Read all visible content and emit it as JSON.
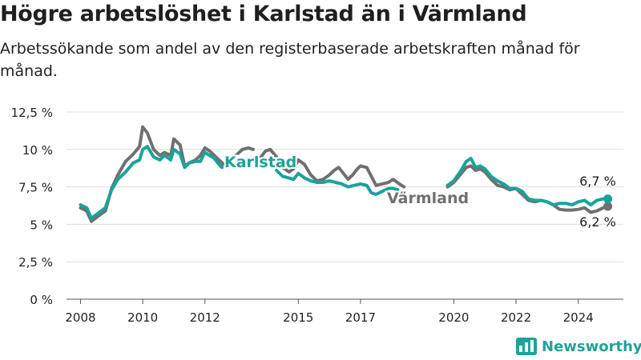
{
  "header": {
    "title": "Högre arbetslöshet i Karlstad än i Värmland",
    "subtitle": "Arbetssökande som andel av den registerbaserade arbetskraften månad för månad."
  },
  "brand": {
    "name": "Newsworthy",
    "icon": "bar-chart-logo-icon",
    "color": "#20a29a"
  },
  "chart_data": {
    "type": "line",
    "title": "Högre arbetslöshet i Karlstad än i Värmland",
    "subtitle": "Arbetssökande som andel av den registerbaserade arbetskraften månad för månad.",
    "xlabel": "",
    "ylabel": "",
    "x_range": [
      2008,
      2025
    ],
    "ylim": [
      0,
      12.5
    ],
    "x_ticks": [
      {
        "value": 2008,
        "label": "2008"
      },
      {
        "value": 2010,
        "label": "2010"
      },
      {
        "value": 2012,
        "label": "2012"
      },
      {
        "value": 2015,
        "label": "2015"
      },
      {
        "value": 2017,
        "label": "2017"
      },
      {
        "value": 2020,
        "label": "2020"
      },
      {
        "value": 2022,
        "label": "2022"
      },
      {
        "value": 2024,
        "label": "2024"
      }
    ],
    "y_ticks": [
      {
        "value": 0,
        "label": "0 %"
      },
      {
        "value": 2.5,
        "label": "2,5 %"
      },
      {
        "value": 5,
        "label": "5 %"
      },
      {
        "value": 7.5,
        "label": "7,5 %"
      },
      {
        "value": 10,
        "label": "10 %"
      },
      {
        "value": 12.5,
        "label": "12,5 %"
      }
    ],
    "grid": true,
    "series": [
      {
        "name": "Värmland",
        "color": "#707070",
        "end_label": "6,2 %",
        "segments": [
          [
            [
              2008.0,
              6.1
            ],
            [
              2008.2,
              5.9
            ],
            [
              2008.35,
              5.2
            ],
            [
              2008.6,
              5.6
            ],
            [
              2008.8,
              5.9
            ],
            [
              2009.0,
              7.4
            ],
            [
              2009.2,
              8.3
            ],
            [
              2009.45,
              9.2
            ],
            [
              2009.7,
              9.7
            ],
            [
              2009.9,
              10.2
            ],
            [
              2010.0,
              11.5
            ],
            [
              2010.15,
              11.1
            ],
            [
              2010.35,
              10.0
            ],
            [
              2010.55,
              9.6
            ],
            [
              2010.7,
              9.8
            ],
            [
              2010.9,
              9.6
            ],
            [
              2011.0,
              10.7
            ],
            [
              2011.2,
              10.3
            ],
            [
              2011.35,
              8.9
            ],
            [
              2011.5,
              9.1
            ],
            [
              2011.7,
              9.3
            ],
            [
              2011.85,
              9.6
            ],
            [
              2012.0,
              10.1
            ],
            [
              2012.15,
              9.9
            ],
            [
              2012.3,
              9.6
            ],
            [
              2012.45,
              9.3
            ],
            [
              2012.6,
              9.0
            ]
          ],
          [
            [
              2012.8,
              9.1
            ],
            [
              2013.0,
              9.6
            ],
            [
              2013.2,
              10.0
            ],
            [
              2013.4,
              10.1
            ],
            [
              2013.55,
              10.0
            ]
          ],
          [
            [
              2013.8,
              9.5
            ],
            [
              2013.95,
              9.9
            ],
            [
              2014.1,
              10.0
            ],
            [
              2014.3,
              9.5
            ],
            [
              2014.5,
              8.8
            ],
            [
              2014.7,
              8.5
            ],
            [
              2014.85,
              8.7
            ],
            [
              2015.0,
              9.3
            ],
            [
              2015.2,
              9.0
            ],
            [
              2015.4,
              8.3
            ],
            [
              2015.6,
              7.9
            ],
            [
              2015.8,
              8.0
            ],
            [
              2016.0,
              8.3
            ],
            [
              2016.15,
              8.6
            ],
            [
              2016.3,
              8.8
            ],
            [
              2016.45,
              8.4
            ],
            [
              2016.6,
              8.0
            ],
            [
              2016.75,
              8.3
            ],
            [
              2016.9,
              8.7
            ],
            [
              2017.0,
              8.9
            ],
            [
              2017.2,
              8.8
            ],
            [
              2017.35,
              8.2
            ],
            [
              2017.5,
              7.6
            ],
            [
              2017.7,
              7.7
            ],
            [
              2017.9,
              7.8
            ],
            [
              2018.05,
              8.0
            ],
            [
              2018.25,
              7.7
            ],
            [
              2018.4,
              7.5
            ]
          ],
          [
            [
              2019.8,
              7.5
            ],
            [
              2020.0,
              7.8
            ],
            [
              2020.2,
              8.3
            ],
            [
              2020.4,
              8.8
            ],
            [
              2020.55,
              8.9
            ],
            [
              2020.7,
              8.6
            ],
            [
              2020.85,
              8.7
            ],
            [
              2021.0,
              8.5
            ],
            [
              2021.2,
              8.0
            ],
            [
              2021.4,
              7.6
            ],
            [
              2021.6,
              7.5
            ],
            [
              2021.8,
              7.3
            ],
            [
              2022.0,
              7.4
            ],
            [
              2022.2,
              7.0
            ],
            [
              2022.4,
              6.6
            ],
            [
              2022.6,
              6.5
            ],
            [
              2022.8,
              6.6
            ],
            [
              2023.0,
              6.5
            ],
            [
              2023.2,
              6.3
            ],
            [
              2023.4,
              6.0
            ],
            [
              2023.6,
              5.95
            ],
            [
              2023.8,
              5.95
            ],
            [
              2024.0,
              6.0
            ],
            [
              2024.2,
              6.1
            ],
            [
              2024.4,
              5.8
            ],
            [
              2024.6,
              5.9
            ],
            [
              2024.8,
              6.1
            ],
            [
              2024.95,
              6.2
            ]
          ]
        ]
      },
      {
        "name": "Karlstad",
        "color": "#1aa39a",
        "end_label": "6,7 %",
        "segments": [
          [
            [
              2008.0,
              6.3
            ],
            [
              2008.2,
              6.1
            ],
            [
              2008.35,
              5.4
            ],
            [
              2008.6,
              5.8
            ],
            [
              2008.8,
              6.1
            ],
            [
              2009.0,
              7.3
            ],
            [
              2009.2,
              8.0
            ],
            [
              2009.45,
              8.5
            ],
            [
              2009.7,
              9.1
            ],
            [
              2009.9,
              9.3
            ],
            [
              2010.0,
              10.0
            ],
            [
              2010.15,
              10.2
            ],
            [
              2010.35,
              9.5
            ],
            [
              2010.55,
              9.3
            ],
            [
              2010.7,
              9.6
            ],
            [
              2010.9,
              9.3
            ],
            [
              2011.0,
              10.0
            ],
            [
              2011.2,
              9.7
            ],
            [
              2011.35,
              8.8
            ],
            [
              2011.5,
              9.1
            ],
            [
              2011.7,
              9.2
            ],
            [
              2011.85,
              9.2
            ],
            [
              2012.0,
              9.8
            ],
            [
              2012.15,
              9.6
            ],
            [
              2012.3,
              9.4
            ],
            [
              2012.45,
              9.0
            ],
            [
              2012.55,
              8.8
            ]
          ],
          [
            [
              2014.3,
              8.6
            ],
            [
              2014.5,
              8.2
            ],
            [
              2014.7,
              8.1
            ],
            [
              2014.85,
              8.0
            ],
            [
              2015.0,
              8.4
            ],
            [
              2015.2,
              8.1
            ],
            [
              2015.4,
              7.9
            ],
            [
              2015.6,
              7.8
            ],
            [
              2015.8,
              7.8
            ],
            [
              2016.0,
              7.9
            ],
            [
              2016.2,
              7.8
            ],
            [
              2016.4,
              7.7
            ],
            [
              2016.6,
              7.5
            ],
            [
              2016.8,
              7.6
            ],
            [
              2017.0,
              7.7
            ],
            [
              2017.2,
              7.6
            ],
            [
              2017.35,
              7.1
            ],
            [
              2017.5,
              7.0
            ],
            [
              2017.7,
              7.2
            ],
            [
              2017.9,
              7.4
            ],
            [
              2018.05,
              7.4
            ],
            [
              2018.2,
              7.3
            ]
          ],
          [
            [
              2019.8,
              7.6
            ],
            [
              2020.0,
              7.9
            ],
            [
              2020.2,
              8.5
            ],
            [
              2020.4,
              9.2
            ],
            [
              2020.55,
              9.4
            ],
            [
              2020.7,
              8.8
            ],
            [
              2020.85,
              8.9
            ],
            [
              2021.0,
              8.7
            ],
            [
              2021.2,
              8.2
            ],
            [
              2021.4,
              7.9
            ],
            [
              2021.6,
              7.7
            ],
            [
              2021.8,
              7.4
            ],
            [
              2022.0,
              7.4
            ],
            [
              2022.2,
              7.2
            ],
            [
              2022.4,
              6.7
            ],
            [
              2022.6,
              6.6
            ],
            [
              2022.8,
              6.6
            ],
            [
              2023.0,
              6.5
            ],
            [
              2023.2,
              6.3
            ],
            [
              2023.4,
              6.4
            ],
            [
              2023.6,
              6.4
            ],
            [
              2023.8,
              6.3
            ],
            [
              2024.0,
              6.5
            ],
            [
              2024.2,
              6.6
            ],
            [
              2024.4,
              6.3
            ],
            [
              2024.6,
              6.6
            ],
            [
              2024.8,
              6.7
            ],
            [
              2024.95,
              6.7
            ]
          ]
        ]
      }
    ]
  }
}
